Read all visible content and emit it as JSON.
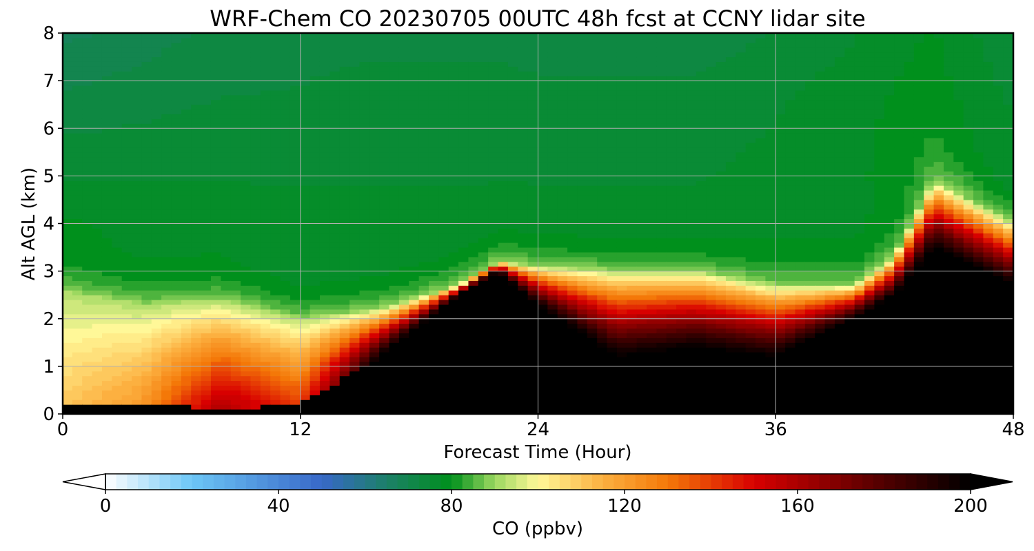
{
  "chart_data": {
    "type": "heatmap",
    "title": "WRF-Chem CO  20230705 00UTC 48h fcst at CCNY lidar site",
    "xlabel": "Forecast Time (Hour)",
    "ylabel": "Alt AGL (km)",
    "xlim": [
      0,
      48
    ],
    "ylim": [
      0,
      8
    ],
    "x_ticks": [
      0,
      12,
      24,
      36,
      48
    ],
    "y_ticks": [
      0,
      1,
      2,
      3,
      4,
      5,
      6,
      7,
      8
    ],
    "grid": true,
    "colorbar": {
      "label": "CO  (ppbv)",
      "range": [
        0,
        200
      ],
      "ticks": [
        0,
        40,
        80,
        120,
        160,
        200
      ],
      "extend": "both",
      "orientation": "horizontal",
      "stops": [
        {
          "value": 0,
          "color": "#ffffff"
        },
        {
          "value": 20,
          "color": "#6cc6f6"
        },
        {
          "value": 50,
          "color": "#3868c8"
        },
        {
          "value": 65,
          "color": "#1c8068"
        },
        {
          "value": 80,
          "color": "#00901c"
        },
        {
          "value": 90,
          "color": "#9cd860"
        },
        {
          "value": 100,
          "color": "#fff898"
        },
        {
          "value": 115,
          "color": "#fcb040"
        },
        {
          "value": 130,
          "color": "#f47808"
        },
        {
          "value": 150,
          "color": "#d80000"
        },
        {
          "value": 180,
          "color": "#500000"
        },
        {
          "value": 200,
          "color": "#000000"
        }
      ]
    },
    "data": {
      "x": [
        0,
        4,
        8,
        12,
        16,
        20,
        22,
        24,
        28,
        32,
        36,
        40,
        42,
        44,
        48
      ],
      "z_background": [
        {
          "alt": 8,
          "values": [
            68,
            70,
            72,
            73,
            73,
            73,
            73,
            72,
            72,
            72,
            74,
            76,
            78,
            79,
            74
          ]
        },
        {
          "alt": 6.5,
          "values": [
            72,
            73,
            74,
            74,
            75,
            75,
            75,
            75,
            75,
            75,
            76,
            78,
            79,
            80,
            76
          ]
        },
        {
          "alt": 5,
          "values": [
            76,
            76,
            76,
            76,
            76,
            76,
            76,
            76,
            76,
            76,
            77,
            78,
            80,
            82,
            76
          ]
        },
        {
          "alt": 4,
          "values": [
            79,
            78,
            78,
            77,
            77,
            77,
            77,
            77,
            77,
            77,
            78,
            78,
            79,
            80,
            78
          ]
        }
      ],
      "plume_top_km": [
        2.6,
        2.3,
        2.4,
        2.0,
        2.2,
        2.7,
        3.2,
        3.1,
        3.0,
        3.0,
        2.7,
        2.7,
        3.3,
        4.9,
        4.0
      ],
      "black_top_km": [
        0.15,
        0.25,
        0.1,
        0.2,
        1.2,
        2.5,
        3.0,
        2.3,
        1.2,
        1.4,
        1.2,
        2.0,
        2.5,
        3.5,
        2.7
      ],
      "max_surface_ppbv": [
        110,
        120,
        160,
        140,
        200,
        200,
        200,
        200,
        200,
        200,
        200,
        200,
        200,
        200,
        200
      ]
    }
  }
}
